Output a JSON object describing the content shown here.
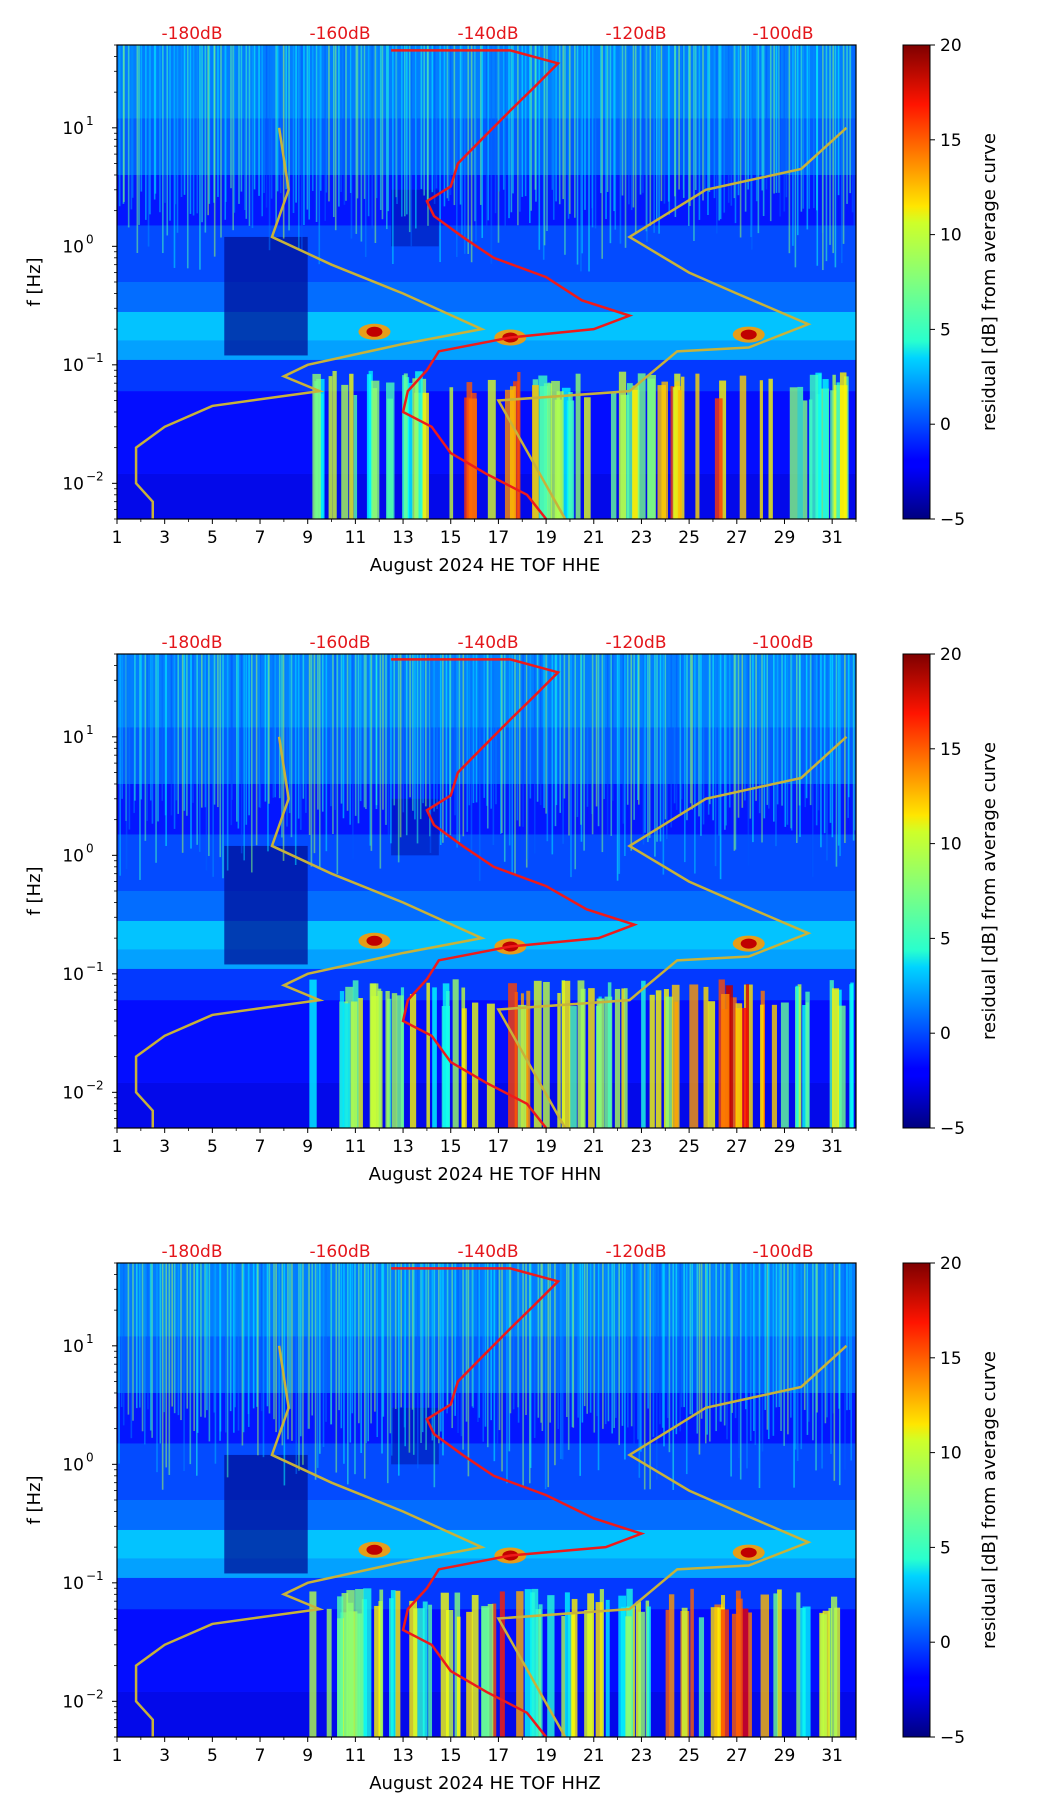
{
  "chart_data": [
    {
      "type": "heatmap",
      "station": "HHE",
      "xlabel": "August 2024 HE TOF  HHE",
      "ylabel": "f [Hz]",
      "x_ticks": [
        "1",
        "3",
        "5",
        "7",
        "9",
        "11",
        "13",
        "15",
        "17",
        "19",
        "21",
        "23",
        "25",
        "27",
        "29",
        "31"
      ],
      "x_range": [
        1,
        32
      ],
      "y_range_hz": [
        0.005,
        50
      ],
      "y_ticks": [
        {
          "exp": "-2",
          "value": 0.01
        },
        {
          "exp": "-1",
          "value": 0.1
        },
        {
          "exp": "0",
          "value": 1
        },
        {
          "exp": "1",
          "value": 10
        }
      ],
      "db_labels": [
        "-180dB",
        "-160dB",
        "-140dB",
        "-120dB",
        "-100dB"
      ],
      "colorbar": {
        "label": "residual [dB] from average curve",
        "range": [
          -5,
          20
        ],
        "ticks": [
          "20",
          "15",
          "10",
          "5",
          "0",
          "−5"
        ]
      },
      "red_curve_peak_day": 22.5,
      "hot_days": [
        15.5,
        17.5,
        21,
        24.5,
        26,
        27.5
      ]
    },
    {
      "type": "heatmap",
      "station": "HHN",
      "xlabel": "August 2024 HE TOF  HHN",
      "ylabel": "f [Hz]",
      "x_ticks": [
        "1",
        "3",
        "5",
        "7",
        "9",
        "11",
        "13",
        "15",
        "17",
        "19",
        "21",
        "23",
        "25",
        "27",
        "29",
        "31"
      ],
      "x_range": [
        1,
        32
      ],
      "y_range_hz": [
        0.005,
        50
      ],
      "y_ticks": [
        {
          "exp": "-2",
          "value": 0.01
        },
        {
          "exp": "-1",
          "value": 0.1
        },
        {
          "exp": "0",
          "value": 1
        },
        {
          "exp": "1",
          "value": 10
        }
      ],
      "db_labels": [
        "-180dB",
        "-160dB",
        "-140dB",
        "-120dB",
        "-100dB"
      ],
      "colorbar": {
        "label": "residual [dB] from average curve",
        "range": [
          -5,
          20
        ],
        "ticks": [
          "20",
          "15",
          "10",
          "5",
          "0",
          "−5"
        ]
      },
      "red_curve_peak_day": 22.7,
      "hot_days": [
        16,
        17.5,
        24.5,
        26.5,
        27.5
      ]
    },
    {
      "type": "heatmap",
      "station": "HHZ",
      "xlabel": "August 2024 HE TOF  HHZ",
      "ylabel": "f [Hz]",
      "x_ticks": [
        "1",
        "3",
        "5",
        "7",
        "9",
        "11",
        "13",
        "15",
        "17",
        "19",
        "21",
        "23",
        "25",
        "27",
        "29",
        "31"
      ],
      "x_range": [
        1,
        32
      ],
      "y_range_hz": [
        0.005,
        50
      ],
      "y_ticks": [
        {
          "exp": "-2",
          "value": 0.01
        },
        {
          "exp": "-1",
          "value": 0.1
        },
        {
          "exp": "0",
          "value": 1
        },
        {
          "exp": "1",
          "value": 10
        }
      ],
      "db_labels": [
        "-180dB",
        "-160dB",
        "-140dB",
        "-120dB",
        "-100dB"
      ],
      "colorbar": {
        "label": "residual [dB] from average curve",
        "range": [
          -5,
          20
        ],
        "ticks": [
          "20",
          "15",
          "10",
          "5",
          "0",
          "−5"
        ]
      },
      "red_curve_peak_day": 23.0,
      "hot_days": [
        17,
        24.5,
        26.5,
        27.5
      ]
    }
  ]
}
